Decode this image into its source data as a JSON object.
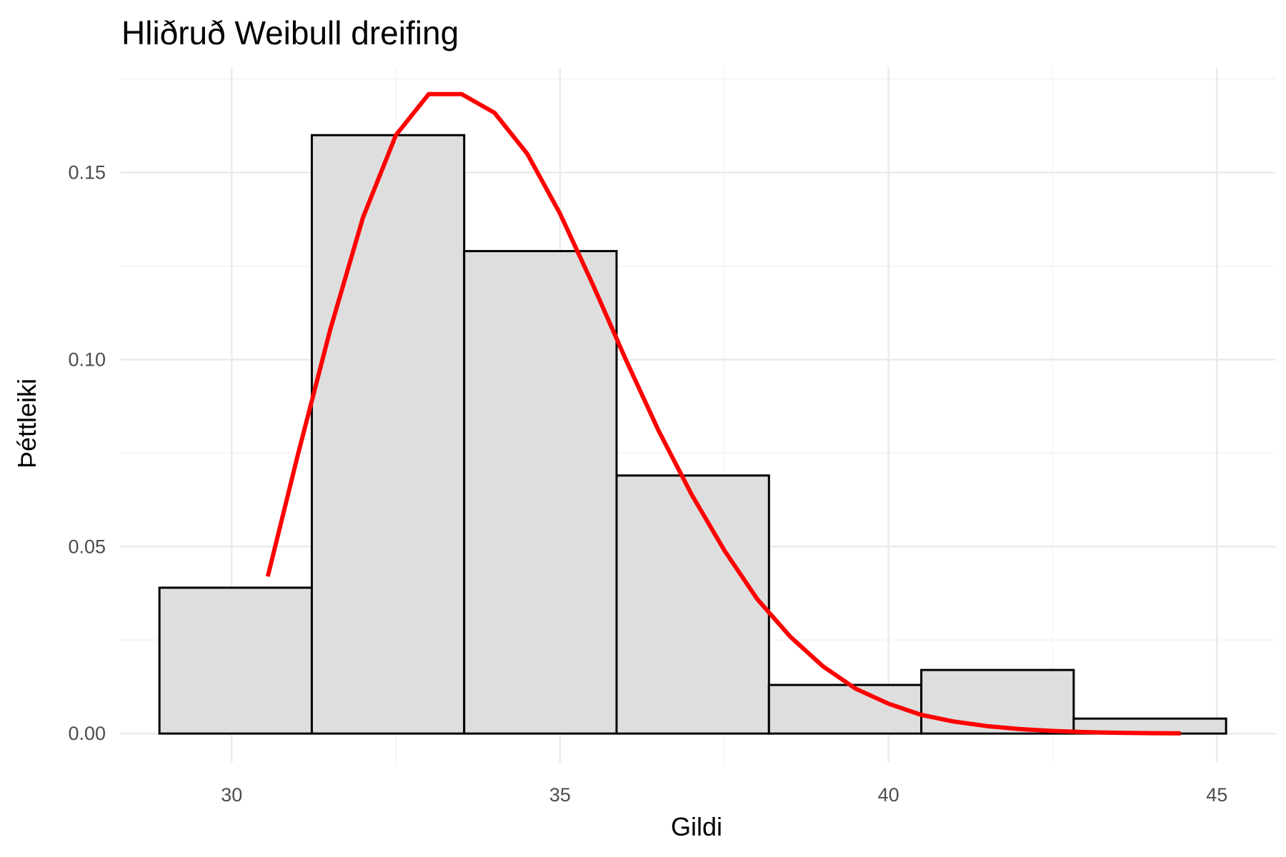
{
  "chart_data": {
    "type": "bar",
    "title": "Hliðruð Weibull dreifing",
    "xlabel": "Gildi",
    "ylabel": "Þéttleiki",
    "xlim": [
      28.3,
      45.9
    ],
    "ylim": [
      -0.0078,
      0.178
    ],
    "x_ticks": [
      30,
      35,
      40,
      45
    ],
    "x_tick_labels": [
      "30",
      "35",
      "40",
      "45"
    ],
    "y_ticks": [
      0,
      0.05,
      0.1,
      0.15
    ],
    "y_tick_labels": [
      "0.00",
      "0.05",
      "0.10",
      "0.15"
    ],
    "grid": true,
    "histogram": {
      "bin_edges": [
        28.9,
        31.22,
        33.54,
        35.86,
        38.18,
        40.5,
        42.82,
        45.14
      ],
      "values": [
        0.039,
        0.16,
        0.129,
        0.069,
        0.013,
        0.017,
        0.004
      ],
      "fill": "#dedede",
      "edge": "#000000"
    },
    "density_curve": {
      "color": "#ff0000",
      "x": [
        30.55,
        31.0,
        31.5,
        32.0,
        32.5,
        33.0,
        33.5,
        34.0,
        34.5,
        35.0,
        35.5,
        36.0,
        36.5,
        37.0,
        37.5,
        38.0,
        38.5,
        39.0,
        39.5,
        40.0,
        40.5,
        41.0,
        41.5,
        42.0,
        42.5,
        43.0,
        43.5,
        44.0,
        44.45
      ],
      "y": [
        0.042,
        0.074,
        0.108,
        0.138,
        0.16,
        0.171,
        0.171,
        0.166,
        0.155,
        0.139,
        0.12,
        0.1,
        0.081,
        0.064,
        0.049,
        0.036,
        0.026,
        0.018,
        0.012,
        0.008,
        0.005,
        0.0032,
        0.002,
        0.0012,
        0.0007,
        0.0004,
        0.0002,
        0.0001,
        5e-05
      ]
    }
  }
}
